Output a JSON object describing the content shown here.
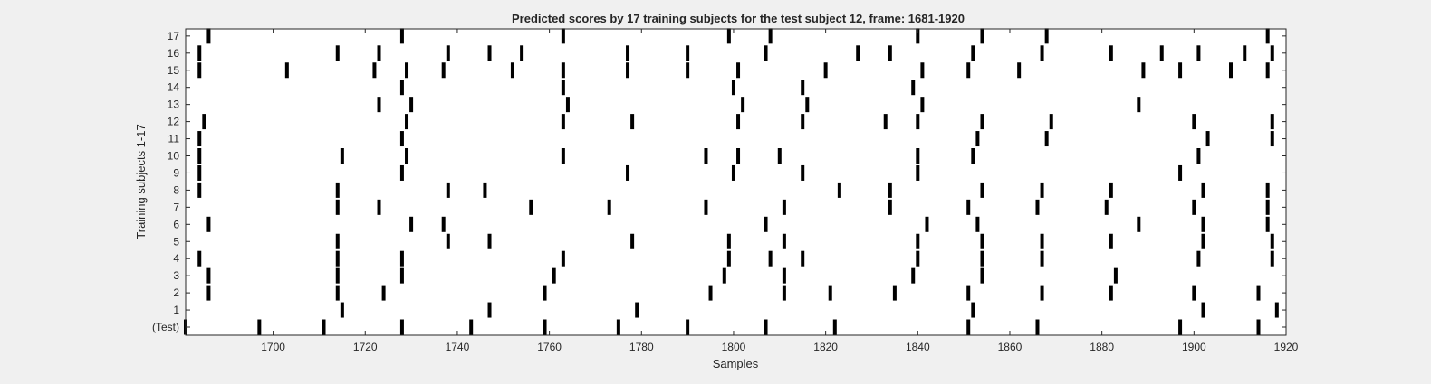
{
  "chart_data": {
    "type": "scatter",
    "title": "Predicted scores by 17 training subjects for the test subject 12, frame: 1681-1920",
    "xlabel": "Samples",
    "ylabel": "Training subjects 1-17",
    "xlim": [
      1681,
      1920
    ],
    "xticks": [
      1700,
      1720,
      1740,
      1760,
      1780,
      1800,
      1820,
      1840,
      1860,
      1880,
      1900,
      1920
    ],
    "yticks": [
      "(Test)",
      "1",
      "2",
      "3",
      "4",
      "5",
      "6",
      "7",
      "8",
      "9",
      "10",
      "11",
      "12",
      "13",
      "14",
      "15",
      "16",
      "17"
    ],
    "grid": false,
    "legend": "none",
    "mark_color": "#000000",
    "rows": [
      {
        "label": "(Test)",
        "x": [
          1681,
          1697,
          1711,
          1728,
          1743,
          1759,
          1775,
          1790,
          1807,
          1822,
          1851,
          1866,
          1897,
          1914
        ]
      },
      {
        "label": "1",
        "x": [
          1715,
          1747,
          1779,
          1852,
          1902,
          1918
        ]
      },
      {
        "label": "2",
        "x": [
          1686,
          1714,
          1724,
          1759,
          1795,
          1811,
          1821,
          1835,
          1851,
          1867,
          1882,
          1900,
          1914
        ]
      },
      {
        "label": "3",
        "x": [
          1686,
          1714,
          1728,
          1761,
          1798,
          1811,
          1839,
          1854,
          1883
        ]
      },
      {
        "label": "4",
        "x": [
          1684,
          1714,
          1728,
          1763,
          1799,
          1808,
          1815,
          1840,
          1854,
          1867,
          1901,
          1917
        ]
      },
      {
        "label": "5",
        "x": [
          1714,
          1738,
          1747,
          1778,
          1799,
          1811,
          1840,
          1854,
          1867,
          1882,
          1902,
          1917
        ]
      },
      {
        "label": "6",
        "x": [
          1686,
          1730,
          1737,
          1807,
          1842,
          1853,
          1888,
          1902,
          1916
        ]
      },
      {
        "label": "7",
        "x": [
          1714,
          1723,
          1756,
          1773,
          1794,
          1811,
          1834,
          1851,
          1866,
          1881,
          1900,
          1916
        ]
      },
      {
        "label": "8",
        "x": [
          1684,
          1714,
          1738,
          1746,
          1823,
          1834,
          1854,
          1867,
          1882,
          1902,
          1916
        ]
      },
      {
        "label": "9",
        "x": [
          1684,
          1728,
          1777,
          1800,
          1815,
          1840,
          1897
        ]
      },
      {
        "label": "10",
        "x": [
          1684,
          1715,
          1729,
          1763,
          1794,
          1801,
          1810,
          1840,
          1852,
          1901
        ]
      },
      {
        "label": "11",
        "x": [
          1684,
          1728,
          1853,
          1868,
          1903,
          1917
        ]
      },
      {
        "label": "12",
        "x": [
          1685,
          1729,
          1763,
          1778,
          1801,
          1815,
          1833,
          1840,
          1854,
          1869,
          1900,
          1917
        ]
      },
      {
        "label": "13",
        "x": [
          1723,
          1730,
          1764,
          1802,
          1816,
          1841,
          1888
        ]
      },
      {
        "label": "14",
        "x": [
          1728,
          1763,
          1800,
          1815,
          1839
        ]
      },
      {
        "label": "15",
        "x": [
          1684,
          1703,
          1722,
          1729,
          1737,
          1752,
          1763,
          1777,
          1790,
          1801,
          1820,
          1841,
          1851,
          1862,
          1889,
          1897,
          1908,
          1916
        ]
      },
      {
        "label": "16",
        "x": [
          1684,
          1714,
          1723,
          1738,
          1747,
          1754,
          1777,
          1790,
          1807,
          1827,
          1834,
          1852,
          1867,
          1882,
          1893,
          1901,
          1911,
          1917
        ]
      },
      {
        "label": "17",
        "x": [
          1686,
          1728,
          1763,
          1799,
          1808,
          1840,
          1854,
          1868,
          1916
        ]
      }
    ]
  }
}
